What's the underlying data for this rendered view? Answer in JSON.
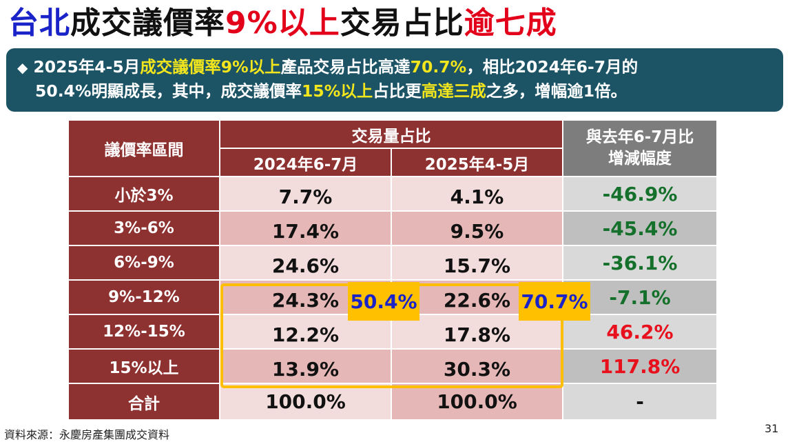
{
  "title": {
    "part1": "台北",
    "part2": "成交議價率",
    "part3": "9%以上",
    "part4": "交易占比",
    "part5": "逾七成"
  },
  "summary": {
    "bullet": "◆",
    "l1_a": "2025年4-5月",
    "l1_b": "成交議價率9%以上",
    "l1_c": "產品交易占比高達",
    "l1_d": "70.7%",
    "l1_e": "，相比2024年6-7月的",
    "l2_a": "50.4%明顯成長，其中，成交議價率",
    "l2_b": "15%以上",
    "l2_c": "占比更",
    "l2_d": "高達三成",
    "l2_e": "之多，增幅逾1倍。"
  },
  "table": {
    "header": {
      "range": "議價率區間",
      "share": "交易量占比",
      "period_2024": "2024年6-7月",
      "period_2025": "2025年4-5月",
      "change_line1": "與去年6-7月比",
      "change_line2": "增減幅度"
    },
    "rows": [
      {
        "label": "小於3%",
        "v2024": "7.7%",
        "v2025": "4.1%",
        "change": "-46.9%"
      },
      {
        "label": "3%-6%",
        "v2024": "17.4%",
        "v2025": "9.5%",
        "change": "-45.4%"
      },
      {
        "label": "6%-9%",
        "v2024": "24.6%",
        "v2025": "15.7%",
        "change": "-36.1%"
      },
      {
        "label": "9%-12%",
        "v2024": "24.3%",
        "v2025": "22.6%",
        "change": "-7.1%"
      },
      {
        "label": "12%-15%",
        "v2024": "12.2%",
        "v2025": "17.8%",
        "change": "46.2%"
      },
      {
        "label": "15%以上",
        "v2024": "13.9%",
        "v2025": "30.3%",
        "change": "117.8%"
      },
      {
        "label": "合計",
        "v2024": "100.0%",
        "v2025": "100.0%",
        "change": "-"
      }
    ],
    "highlight_2024": "50.4%",
    "highlight_2025": "70.7%"
  },
  "colors": {
    "header_red": "#8e3131",
    "title_blue": "#1a23c8",
    "title_red": "#e2001a",
    "summary_bg": "#1c5466",
    "summary_highlight": "#f4e61c",
    "decrease_green": "#14702a",
    "increase_red": "#e8101c",
    "highlight_box": "#ffbf00"
  },
  "footer": {
    "source": "資料來源：永慶房產集團成交資料",
    "page": "31"
  }
}
